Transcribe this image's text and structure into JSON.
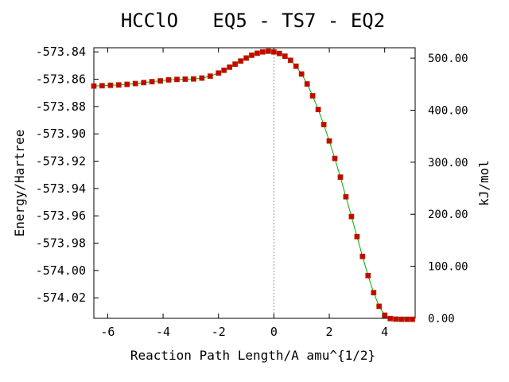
{
  "chart_data": {
    "type": "line",
    "title": "HCClO   EQ5 - TS7 - EQ2",
    "xlabel": "Reaction Path Length/A amu^{1/2}",
    "ylabel": "Energy/Hartree",
    "y2label": "kJ/mol",
    "xlim": [
      -6.5,
      5.1
    ],
    "ylim": [
      -574.035,
      -573.837
    ],
    "y2lim": [
      0,
      520
    ],
    "x_ticks": [
      "-6",
      "-4",
      "-2",
      "0",
      "2",
      "4"
    ],
    "x_tick_values": [
      -6,
      -4,
      -2,
      0,
      2,
      4
    ],
    "y_ticks": [
      "-573.84",
      "-573.86",
      "-573.88",
      "-573.90",
      "-573.92",
      "-573.94",
      "-573.96",
      "-573.98",
      "-574.00",
      "-574.02"
    ],
    "y_tick_values": [
      -573.84,
      -573.86,
      -573.88,
      -573.9,
      -573.92,
      -573.94,
      -573.96,
      -573.98,
      -574.0,
      -574.02
    ],
    "y2_ticks": [
      "500.00",
      "400.00",
      "300.00",
      "200.00",
      "100.00",
      "0.00"
    ],
    "y2_tick_values": [
      500,
      400,
      300,
      200,
      100,
      0
    ],
    "ts_marker_x": 0,
    "colors": {
      "line": "#00aa00",
      "marker": "#cc0000",
      "marker_edge": "#aa3300",
      "ts_line": "#999999"
    },
    "series": [
      {
        "x": [
          -6.5,
          -6.2,
          -5.9,
          -5.6,
          -5.3,
          -5.0,
          -4.7,
          -4.4,
          -4.1,
          -3.8,
          -3.5,
          -3.2,
          -2.9,
          -2.6,
          -2.3,
          -2.0,
          -1.8,
          -1.6,
          -1.4,
          -1.2,
          -1.0,
          -0.8,
          -0.6,
          -0.4,
          -0.2,
          0.0,
          0.2,
          0.4,
          0.6,
          0.8,
          1.0,
          1.2,
          1.4,
          1.6,
          1.8,
          2.0,
          2.2,
          2.4,
          2.6,
          2.8,
          3.0,
          3.2,
          3.4,
          3.6,
          3.8,
          4.0,
          4.2,
          4.4,
          4.6,
          4.8,
          5.0
        ],
        "y": [
          -573.865,
          -573.8648,
          -573.8645,
          -573.8642,
          -573.8638,
          -573.8632,
          -573.8625,
          -573.8618,
          -573.8612,
          -573.8605,
          -573.8602,
          -573.86,
          -573.8598,
          -573.8592,
          -573.8578,
          -573.8555,
          -573.8535,
          -573.8512,
          -573.849,
          -573.8467,
          -573.8445,
          -573.8425,
          -573.841,
          -573.84,
          -573.8395,
          -573.84,
          -573.8412,
          -573.8432,
          -573.8462,
          -573.8505,
          -573.8562,
          -573.8635,
          -573.8722,
          -573.8822,
          -573.8932,
          -573.9052,
          -573.918,
          -573.9317,
          -573.946,
          -573.9605,
          -573.9752,
          -573.9897,
          -574.0037,
          -574.0162,
          -574.0262,
          -574.0327,
          -574.0352,
          -574.0356,
          -574.0357,
          -574.0357,
          -574.0357
        ]
      }
    ]
  }
}
